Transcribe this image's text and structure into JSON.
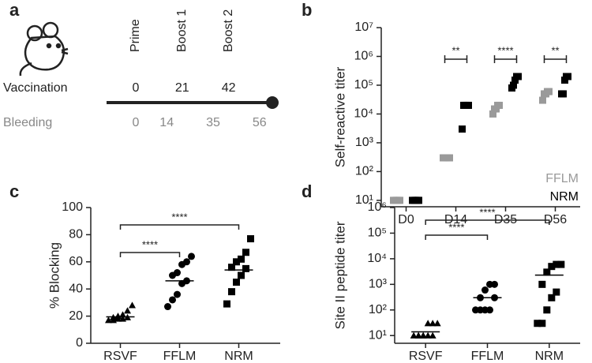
{
  "diagram": {
    "panel": "a",
    "events": [
      "Prime",
      "Boost 1",
      "Boost 2"
    ],
    "vaccination_label": "Vaccination",
    "vaccination_days": [
      0,
      21,
      42
    ],
    "bleeding_label": "Bleeding",
    "bleeding_days": [
      0,
      14,
      35,
      56
    ]
  },
  "chart_data": [
    {
      "panel": "b",
      "type": "scatter",
      "ylabel": "Self-reactive titer",
      "log_scale": true,
      "categories": [
        "D0",
        "D14",
        "D35",
        "D56"
      ],
      "series": [
        {
          "name": "FFLM",
          "color": "#9a9a9a",
          "values": [
            [
              10,
              10,
              10,
              10,
              10
            ],
            [
              300,
              300,
              300,
              300,
              300
            ],
            [
              10000,
              15000,
              15000,
              20000,
              20000
            ],
            [
              30000,
              50000,
              50000,
              60000,
              60000
            ]
          ]
        },
        {
          "name": "NRM",
          "color": "#000000",
          "values": [
            [
              10,
              10,
              10,
              10,
              10
            ],
            [
              3000,
              20000,
              20000,
              20000,
              20000
            ],
            [
              80000,
              100000,
              150000,
              200000,
              200000
            ],
            [
              50000,
              50000,
              150000,
              200000,
              200000
            ]
          ]
        }
      ],
      "ylim": [
        6,
        10000000
      ],
      "yticks": [
        {
          "value": 10,
          "label": "10¹"
        },
        {
          "value": 100,
          "label": "10²"
        },
        {
          "value": 1000,
          "label": "10³"
        },
        {
          "value": 10000,
          "label": "10⁴"
        },
        {
          "value": 100000,
          "label": "10⁵"
        },
        {
          "value": 1000000,
          "label": "10⁶"
        },
        {
          "value": 10000000,
          "label": "10⁷"
        }
      ],
      "legend": "lower right",
      "annotations": [
        {
          "text": "**",
          "category": "D14"
        },
        {
          "text": "****",
          "category": "D35"
        },
        {
          "text": "**",
          "category": "D56"
        }
      ]
    },
    {
      "panel": "c",
      "type": "dotplot",
      "ylabel": "% Blocking",
      "categories": [
        "RSVF",
        "FFLM",
        "NRM"
      ],
      "markers": [
        "triangle",
        "circle",
        "square"
      ],
      "values": [
        [
          17,
          17,
          18,
          18,
          19,
          19,
          20,
          21,
          24,
          28
        ],
        [
          27,
          32,
          36,
          44,
          46,
          50,
          52,
          58,
          60,
          64
        ],
        [
          29,
          38,
          45,
          50,
          55,
          56,
          60,
          62,
          67,
          77
        ]
      ],
      "means": [
        19.5,
        46,
        54
      ],
      "ylim": [
        0,
        100
      ],
      "yticks": [
        0,
        20,
        40,
        60,
        80,
        100
      ],
      "annotations": [
        {
          "text": "****",
          "between": [
            "RSVF",
            "FFLM"
          ]
        },
        {
          "text": "****",
          "between": [
            "RSVF",
            "NRM"
          ]
        }
      ]
    },
    {
      "panel": "d",
      "type": "dotplot",
      "ylabel": "Site II peptide titer",
      "log_scale": true,
      "categories": [
        "RSVF",
        "FFLM",
        "NRM"
      ],
      "markers": [
        "triangle",
        "circle",
        "square"
      ],
      "values": [
        [
          10,
          10,
          10,
          10,
          10,
          10,
          10,
          30,
          30,
          30
        ],
        [
          100,
          100,
          100,
          100,
          300,
          300,
          600,
          1000,
          1000
        ],
        [
          30,
          30,
          100,
          300,
          500,
          1000,
          3000,
          5000,
          6000,
          6000
        ]
      ],
      "means": [
        14,
        300,
        2300
      ],
      "ylim": [
        5,
        1000000
      ],
      "yticks": [
        {
          "value": 10,
          "label": "10¹"
        },
        {
          "value": 100,
          "label": "10²"
        },
        {
          "value": 1000,
          "label": "10³"
        },
        {
          "value": 10000,
          "label": "10⁴"
        },
        {
          "value": 100000,
          "label": "10⁵"
        },
        {
          "value": 1000000,
          "label": "10⁶"
        }
      ],
      "annotations": [
        {
          "text": "****",
          "between": [
            "RSVF",
            "FFLM"
          ]
        },
        {
          "text": "****",
          "between": [
            "RSVF",
            "NRM"
          ]
        }
      ]
    }
  ]
}
